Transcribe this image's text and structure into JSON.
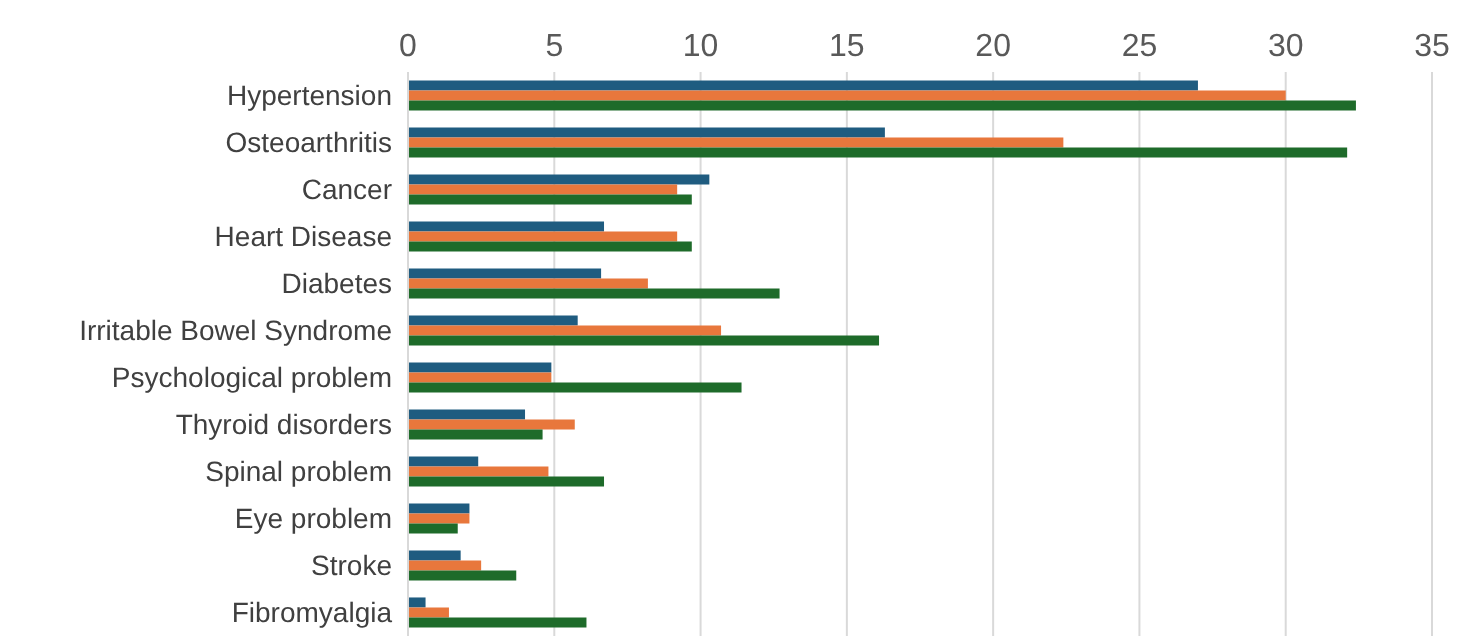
{
  "chart_data": {
    "type": "bar",
    "orientation": "horizontal",
    "categories": [
      "Hypertension",
      "Osteoarthritis",
      "Cancer",
      "Heart Disease",
      "Diabetes",
      "Irritable Bowel Syndrome",
      "Psychological problem",
      "Thyroid disorders",
      "Spinal problem",
      "Eye problem",
      "Stroke",
      "Fibromyalgia"
    ],
    "series": [
      {
        "color": "#1f5c80",
        "values": [
          27.0,
          16.3,
          10.3,
          6.7,
          6.6,
          5.8,
          4.9,
          4.0,
          2.4,
          2.1,
          1.8,
          0.6
        ]
      },
      {
        "color": "#e8773c",
        "values": [
          30.0,
          22.4,
          9.2,
          9.2,
          8.2,
          10.7,
          4.9,
          5.7,
          4.8,
          2.1,
          2.5,
          1.4
        ]
      },
      {
        "color": "#1e6b2a",
        "values": [
          32.4,
          32.1,
          9.7,
          9.7,
          12.7,
          16.1,
          11.4,
          4.6,
          6.7,
          1.7,
          3.7,
          6.1
        ]
      }
    ],
    "xlim": [
      0,
      35
    ],
    "xticks": [
      0,
      5,
      10,
      15,
      20,
      25,
      30,
      35
    ],
    "grid": "x",
    "legend": false
  }
}
